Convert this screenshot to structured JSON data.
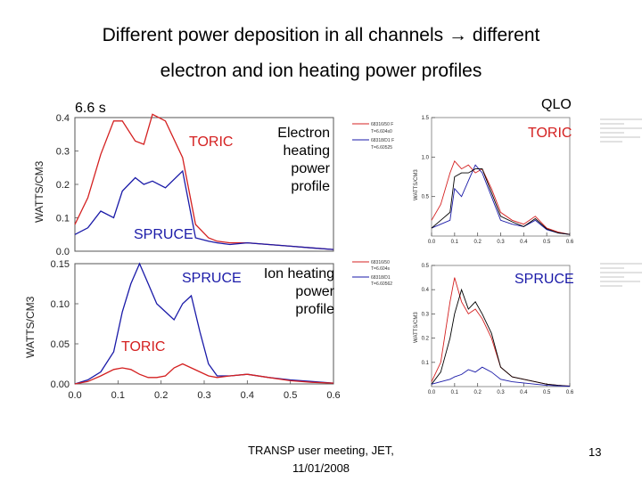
{
  "header": {
    "line1": "Different power deposition in all channels",
    "line1_tail": "different",
    "line2": "electron and ion heating power profiles"
  },
  "labels": {
    "time": "6.6 s",
    "qlo": "QLO",
    "toric_top_left": "TORIC",
    "spruce_top_left": "SPRUCE",
    "spruce_bottom_left": "SPRUCE",
    "toric_bottom_left": "TORIC",
    "toric_top_right": "TORIC",
    "spruce_bottom_right": "SPRUCE",
    "electron_note": [
      "Electron",
      "heating",
      "power",
      "profile"
    ],
    "ion_note": [
      "Ion heating",
      "power",
      "profile"
    ]
  },
  "footer": {
    "line1": "TRANSP user meeting, JET,",
    "line2": "11/01/2008",
    "page": "13"
  },
  "colors": {
    "red": "#d42020",
    "blue": "#1a1aa8",
    "black": "#000000",
    "axis": "#555555"
  },
  "chart_data": [
    {
      "type": "line",
      "ylabel": "WATTS/CM3",
      "xlim": [
        0.0,
        0.6
      ],
      "ylim": [
        0.0,
        0.4
      ],
      "yticks": [
        "0.0",
        "0.1",
        "0.2",
        "0.3",
        "0.4"
      ],
      "legend": [
        "68316/50 F",
        "T=6.604s0",
        "68318/D1 F",
        "T=6.60525"
      ],
      "series": [
        {
          "color": "red",
          "x": [
            0,
            0.03,
            0.06,
            0.09,
            0.11,
            0.14,
            0.16,
            0.18,
            0.21,
            0.25,
            0.28,
            0.31,
            0.33,
            0.36,
            0.4,
            0.45,
            0.5,
            0.55,
            0.6
          ],
          "y": [
            0.08,
            0.16,
            0.29,
            0.39,
            0.39,
            0.33,
            0.32,
            0.41,
            0.39,
            0.28,
            0.08,
            0.04,
            0.03,
            0.025,
            0.025,
            0.02,
            0.015,
            0.01,
            0.005
          ]
        },
        {
          "color": "blue",
          "x": [
            0,
            0.03,
            0.06,
            0.09,
            0.11,
            0.14,
            0.16,
            0.18,
            0.21,
            0.25,
            0.28,
            0.31,
            0.33,
            0.36,
            0.4,
            0.45,
            0.5,
            0.55,
            0.6
          ],
          "y": [
            0.05,
            0.07,
            0.12,
            0.1,
            0.18,
            0.22,
            0.2,
            0.21,
            0.19,
            0.24,
            0.04,
            0.03,
            0.025,
            0.02,
            0.025,
            0.02,
            0.015,
            0.01,
            0.005
          ]
        }
      ]
    },
    {
      "type": "line",
      "ylabel": "WATTS/CM3",
      "xlim": [
        0.0,
        0.6
      ],
      "ylim": [
        0.0,
        0.15
      ],
      "xticks": [
        "0.0",
        "0.1",
        "0.2",
        "0.3",
        "0.4",
        "0.5",
        "0.6"
      ],
      "yticks": [
        "0.00",
        "0.05",
        "0.10",
        "0.15"
      ],
      "legend": [
        "68316/50",
        "T=6.604s",
        "68318/D1",
        "T=6.60562"
      ],
      "series": [
        {
          "color": "blue",
          "x": [
            0,
            0.03,
            0.06,
            0.09,
            0.11,
            0.13,
            0.15,
            0.17,
            0.19,
            0.21,
            0.23,
            0.25,
            0.27,
            0.29,
            0.31,
            0.33,
            0.36,
            0.4,
            0.45,
            0.5,
            0.55,
            0.6
          ],
          "y": [
            0.0,
            0.005,
            0.015,
            0.04,
            0.09,
            0.125,
            0.15,
            0.125,
            0.1,
            0.09,
            0.08,
            0.1,
            0.11,
            0.065,
            0.025,
            0.01,
            0.01,
            0.012,
            0.008,
            0.005,
            0.003,
            0.001
          ]
        },
        {
          "color": "red",
          "x": [
            0,
            0.03,
            0.06,
            0.09,
            0.11,
            0.13,
            0.15,
            0.17,
            0.19,
            0.21,
            0.23,
            0.25,
            0.27,
            0.29,
            0.31,
            0.33,
            0.36,
            0.4,
            0.45,
            0.5,
            0.55,
            0.6
          ],
          "y": [
            0.0,
            0.003,
            0.01,
            0.018,
            0.02,
            0.018,
            0.012,
            0.008,
            0.008,
            0.01,
            0.02,
            0.025,
            0.02,
            0.015,
            0.01,
            0.008,
            0.01,
            0.012,
            0.008,
            0.004,
            0.002,
            0.001
          ]
        }
      ]
    },
    {
      "type": "line",
      "ylabel": "WATTS/CM3",
      "xlim": [
        0.0,
        0.6
      ],
      "ylim": [
        0.0,
        1.5
      ],
      "xticks": [
        "0.0",
        "0.1",
        "0.2",
        "0.3",
        "0.4",
        "0.5",
        "0.6"
      ],
      "yticks": [
        "0.5",
        "1.0",
        "1.5"
      ],
      "series": [
        {
          "color": "red",
          "x": [
            0,
            0.04,
            0.08,
            0.1,
            0.13,
            0.16,
            0.19,
            0.22,
            0.26,
            0.3,
            0.35,
            0.4,
            0.45,
            0.5,
            0.55,
            0.6
          ],
          "y": [
            0.2,
            0.4,
            0.8,
            0.95,
            0.85,
            0.9,
            0.8,
            0.85,
            0.6,
            0.3,
            0.2,
            0.15,
            0.25,
            0.1,
            0.05,
            0.02
          ]
        },
        {
          "color": "blue",
          "x": [
            0,
            0.04,
            0.08,
            0.1,
            0.13,
            0.16,
            0.19,
            0.22,
            0.26,
            0.3,
            0.35,
            0.4,
            0.45,
            0.5,
            0.55,
            0.6
          ],
          "y": [
            0.1,
            0.15,
            0.2,
            0.6,
            0.5,
            0.7,
            0.9,
            0.8,
            0.5,
            0.2,
            0.15,
            0.12,
            0.2,
            0.08,
            0.04,
            0.02
          ]
        },
        {
          "color": "black",
          "x": [
            0,
            0.04,
            0.08,
            0.1,
            0.13,
            0.16,
            0.19,
            0.22,
            0.26,
            0.3,
            0.35,
            0.4,
            0.45,
            0.5,
            0.55,
            0.6
          ],
          "y": [
            0.1,
            0.2,
            0.3,
            0.75,
            0.8,
            0.8,
            0.85,
            0.85,
            0.55,
            0.25,
            0.18,
            0.12,
            0.22,
            0.09,
            0.04,
            0.02
          ]
        }
      ]
    },
    {
      "type": "line",
      "ylabel": "WATTS/CM3",
      "xlim": [
        0.0,
        0.6
      ],
      "ylim": [
        0.0,
        0.5
      ],
      "xticks": [
        "0.0",
        "0.1",
        "0.2",
        "0.3",
        "0.4",
        "0.5",
        "0.6"
      ],
      "yticks": [
        "0.1",
        "0.2",
        "0.3",
        "0.4",
        "0.5"
      ],
      "series": [
        {
          "color": "red",
          "x": [
            0,
            0.04,
            0.08,
            0.1,
            0.13,
            0.16,
            0.19,
            0.22,
            0.26,
            0.3,
            0.35,
            0.4,
            0.45,
            0.5,
            0.55,
            0.6
          ],
          "y": [
            0.02,
            0.1,
            0.35,
            0.45,
            0.35,
            0.3,
            0.32,
            0.28,
            0.2,
            0.08,
            0.04,
            0.03,
            0.02,
            0.01,
            0.005,
            0.002
          ]
        },
        {
          "color": "black",
          "x": [
            0,
            0.04,
            0.08,
            0.1,
            0.13,
            0.16,
            0.19,
            0.22,
            0.26,
            0.3,
            0.35,
            0.4,
            0.45,
            0.5,
            0.55,
            0.6
          ],
          "y": [
            0.01,
            0.06,
            0.2,
            0.3,
            0.4,
            0.32,
            0.35,
            0.3,
            0.22,
            0.08,
            0.04,
            0.03,
            0.02,
            0.01,
            0.005,
            0.002
          ]
        },
        {
          "color": "blue",
          "x": [
            0,
            0.04,
            0.08,
            0.1,
            0.13,
            0.16,
            0.19,
            0.22,
            0.26,
            0.3,
            0.35,
            0.4,
            0.45,
            0.5,
            0.55,
            0.6
          ],
          "y": [
            0.01,
            0.02,
            0.03,
            0.04,
            0.05,
            0.07,
            0.06,
            0.08,
            0.06,
            0.03,
            0.02,
            0.015,
            0.01,
            0.005,
            0.003,
            0.001
          ]
        }
      ]
    }
  ]
}
